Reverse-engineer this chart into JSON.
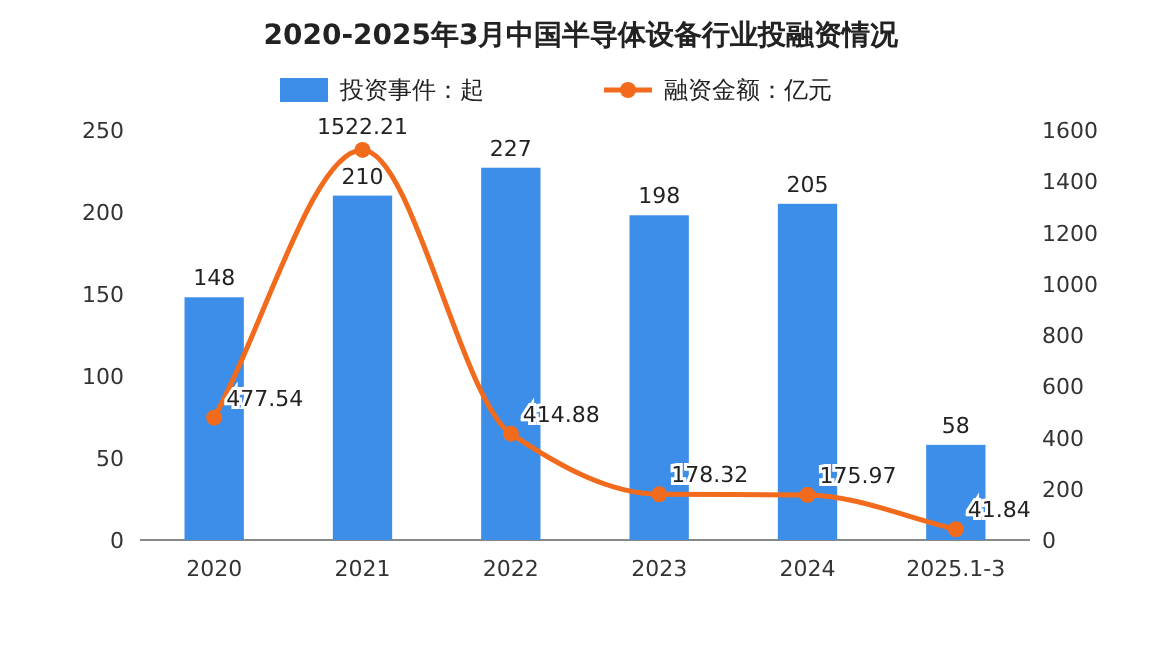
{
  "chart_data": {
    "type": "bar",
    "title": "2020-2025年3月中国半导体设备行业投融资情况",
    "categories": [
      "2020",
      "2021",
      "2022",
      "2023",
      "2024",
      "2025.1-3"
    ],
    "series": [
      {
        "name": "投资事件：起",
        "color": "#3d8ee8",
        "values": [
          148,
          210,
          227,
          198,
          205,
          58
        ]
      },
      {
        "name": "融资金额：亿元",
        "type": "line",
        "axis": "y2",
        "color": "#f26b1d",
        "values": [
          477.54,
          1522.21,
          414.88,
          178.32,
          175.97,
          41.84
        ]
      }
    ],
    "ylim": [
      0,
      250
    ],
    "yticks": [
      0,
      50,
      100,
      150,
      200,
      250
    ],
    "y2lim": [
      0,
      1600
    ],
    "y2ticks": [
      0,
      200,
      400,
      600,
      800,
      1000,
      1200,
      1400,
      1600
    ],
    "data_labels": true,
    "legend": "top",
    "marker": "circle"
  }
}
